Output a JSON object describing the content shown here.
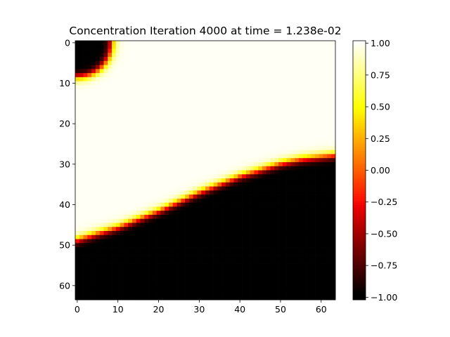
{
  "chart_data": {
    "type": "heatmap",
    "title": "Concentration Iteration 4000 at time = 1.238e-02",
    "xlabel": "",
    "ylabel": "",
    "grid_size": [
      64,
      64
    ],
    "xlim": [
      -0.5,
      63.5
    ],
    "ylim": [
      63.5,
      -0.5
    ],
    "y_axis_inverted": true,
    "x_ticks": [
      "0",
      "10",
      "20",
      "30",
      "40",
      "50",
      "60"
    ],
    "y_ticks": [
      "0",
      "10",
      "20",
      "30",
      "40",
      "50",
      "60"
    ],
    "colormap": "hot",
    "color_range": [
      -1.02,
      1.02
    ],
    "colorbar_ticks": [
      "1.00",
      "0.75",
      "0.50",
      "0.25",
      "0.00",
      "−0.25",
      "−0.50",
      "−0.75",
      "−1.00"
    ],
    "high_value": 1.0,
    "low_value": -1.0,
    "interface_rows": [
      {
        "x": 0,
        "y": 48.7
      },
      {
        "x": 10,
        "y": 45.6
      },
      {
        "x": 20,
        "y": 41.6
      },
      {
        "x": 30,
        "y": 37.0
      },
      {
        "x": 40,
        "y": 33.0
      },
      {
        "x": 50,
        "y": 29.9
      },
      {
        "x": 55,
        "y": 28.8
      },
      {
        "x": 63,
        "y": 27.8
      }
    ],
    "interface_width": 0.6,
    "corner_region": {
      "center": [
        0,
        0
      ],
      "radius": 8.5,
      "value": -1.0
    }
  }
}
